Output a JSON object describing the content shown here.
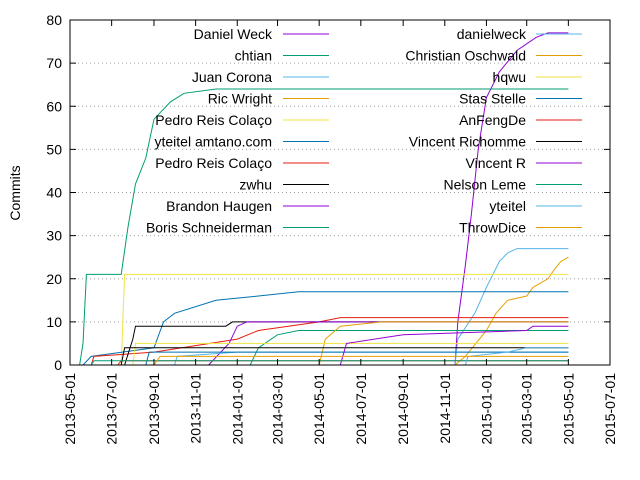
{
  "chart_data": {
    "type": "line",
    "title": "",
    "xlabel": "",
    "ylabel": "Commits",
    "ylim": [
      0,
      80
    ],
    "xlim": [
      "2013-05-01",
      "2015-07-01"
    ],
    "y_ticks": [
      0,
      10,
      20,
      30,
      40,
      50,
      60,
      70,
      80
    ],
    "x_ticks": [
      "2013-05-01",
      "2013-07-01",
      "2013-09-01",
      "2013-11-01",
      "2014-01-01",
      "2014-03-01",
      "2014-05-01",
      "2014-07-01",
      "2014-09-01",
      "2014-11-01",
      "2015-01-01",
      "2015-03-01",
      "2015-05-01",
      "2015-07-01"
    ],
    "grid": "horizontal dotted",
    "legend_position": "top, two columns",
    "series": [
      {
        "name": "Daniel Weck",
        "color": "#9400d3",
        "points": [
          [
            "2014-11-16",
            0
          ],
          [
            "2014-11-20",
            10
          ],
          [
            "2014-12-01",
            23
          ],
          [
            "2014-12-10",
            35
          ],
          [
            "2014-12-20",
            50
          ],
          [
            "2015-01-01",
            62
          ],
          [
            "2015-01-20",
            68
          ],
          [
            "2015-02-15",
            73
          ],
          [
            "2015-03-15",
            76
          ],
          [
            "2015-04-01",
            77
          ],
          [
            "2015-05-01",
            77
          ]
        ]
      },
      {
        "name": "chtian",
        "color": "#009e73",
        "points": [
          [
            "2013-05-15",
            0
          ],
          [
            "2013-05-20",
            5
          ],
          [
            "2013-05-25",
            21
          ],
          [
            "2013-07-15",
            21
          ],
          [
            "2013-07-25",
            32
          ],
          [
            "2013-08-05",
            42
          ],
          [
            "2013-08-20",
            48
          ],
          [
            "2013-09-01",
            57
          ],
          [
            "2013-09-25",
            61
          ],
          [
            "2013-10-15",
            63
          ],
          [
            "2013-12-01",
            64
          ],
          [
            "2015-05-01",
            64
          ]
        ]
      },
      {
        "name": "Juan Corona",
        "color": "#56b4e9",
        "points": [
          [
            "2014-11-16",
            0
          ],
          [
            "2014-11-20",
            6
          ],
          [
            "2014-12-15",
            12
          ],
          [
            "2015-01-01",
            18
          ],
          [
            "2015-01-20",
            24
          ],
          [
            "2015-02-01",
            26
          ],
          [
            "2015-02-15",
            27
          ],
          [
            "2015-05-01",
            27
          ]
        ]
      },
      {
        "name": "Ric Wright",
        "color": "#e69f00",
        "points": [
          [
            "2014-11-16",
            0
          ],
          [
            "2014-12-01",
            2
          ],
          [
            "2015-01-01",
            8
          ],
          [
            "2015-01-15",
            12
          ],
          [
            "2015-02-01",
            15
          ],
          [
            "2015-03-01",
            16
          ],
          [
            "2015-03-10",
            18
          ],
          [
            "2015-04-01",
            20
          ],
          [
            "2015-04-10",
            22
          ],
          [
            "2015-04-20",
            24
          ],
          [
            "2015-05-01",
            25
          ]
        ]
      },
      {
        "name": "Pedro Reis Colaço",
        "color": "#f0e442",
        "points": [
          [
            "2013-07-15",
            0
          ],
          [
            "2013-07-20",
            21
          ],
          [
            "2015-05-01",
            21
          ]
        ]
      },
      {
        "name": "yteitel amtano.com",
        "color": "#0072b2",
        "points": [
          [
            "2013-05-20",
            0
          ],
          [
            "2013-06-01",
            2
          ],
          [
            "2013-09-01",
            4
          ],
          [
            "2013-09-15",
            10
          ],
          [
            "2013-10-01",
            12
          ],
          [
            "2013-12-01",
            15
          ],
          [
            "2014-02-01",
            16
          ],
          [
            "2014-04-01",
            17
          ],
          [
            "2015-05-01",
            17
          ]
        ]
      },
      {
        "name": "Pedro Reis Colaço",
        "color": "#e51e10",
        "points": [
          [
            "2013-06-01",
            0
          ],
          [
            "2013-06-05",
            2
          ],
          [
            "2013-09-01",
            3
          ],
          [
            "2014-01-01",
            6
          ],
          [
            "2014-02-01",
            8
          ],
          [
            "2014-05-01",
            10
          ],
          [
            "2014-06-01",
            11
          ],
          [
            "2015-05-01",
            11
          ]
        ]
      },
      {
        "name": "zwhu",
        "color": "#000000",
        "points": [
          [
            "2013-07-20",
            0
          ],
          [
            "2013-08-01",
            6
          ],
          [
            "2013-08-05",
            9
          ],
          [
            "2013-12-15",
            9
          ],
          [
            "2013-12-25",
            10
          ],
          [
            "2015-05-01",
            10
          ]
        ]
      },
      {
        "name": "Brandon Haugen",
        "color": "#9400d3",
        "points": [
          [
            "2013-11-20",
            0
          ],
          [
            "2013-12-20",
            5
          ],
          [
            "2014-01-01",
            9
          ],
          [
            "2014-01-15",
            10
          ],
          [
            "2015-05-01",
            10
          ]
        ]
      },
      {
        "name": "Boris Schneiderman",
        "color": "#009e73",
        "points": [
          [
            "2014-01-20",
            0
          ],
          [
            "2014-02-01",
            4
          ],
          [
            "2014-03-01",
            7
          ],
          [
            "2014-04-01",
            8
          ],
          [
            "2015-05-01",
            8
          ]
        ]
      },
      {
        "name": "danielweck",
        "color": "#56b4e9",
        "points": [
          [
            "2013-10-01",
            0
          ],
          [
            "2013-10-05",
            2
          ],
          [
            "2014-01-01",
            3
          ],
          [
            "2015-05-01",
            3
          ]
        ]
      },
      {
        "name": "Christian Oschwald",
        "color": "#e69f00",
        "points": [
          [
            "2014-05-01",
            0
          ],
          [
            "2014-05-10",
            6
          ],
          [
            "2014-06-01",
            9
          ],
          [
            "2014-08-01",
            10
          ],
          [
            "2015-05-01",
            10
          ]
        ]
      },
      {
        "name": "hqwu",
        "color": "#f0e442",
        "points": [
          [
            "2013-08-01",
            0
          ],
          [
            "2013-08-05",
            5
          ],
          [
            "2015-05-01",
            5
          ]
        ]
      },
      {
        "name": "Stas Stelle",
        "color": "#0072b2",
        "points": [
          [
            "2013-08-20",
            0
          ],
          [
            "2013-08-25",
            3
          ],
          [
            "2015-05-01",
            3
          ]
        ]
      },
      {
        "name": "AnFengDe",
        "color": "#e51e10",
        "points": [
          [
            "2013-07-10",
            0
          ],
          [
            "2013-07-15",
            1
          ],
          [
            "2015-05-01",
            1
          ]
        ]
      },
      {
        "name": "Vincent Richomme",
        "color": "#000000",
        "points": [
          [
            "2013-07-15",
            0
          ],
          [
            "2013-07-20",
            4
          ],
          [
            "2015-05-01",
            4
          ]
        ]
      },
      {
        "name": "Vincent R",
        "color": "#9400d3",
        "points": [
          [
            "2014-06-01",
            0
          ],
          [
            "2014-06-10",
            5
          ],
          [
            "2014-09-01",
            7
          ],
          [
            "2015-03-01",
            8
          ],
          [
            "2015-03-10",
            9
          ],
          [
            "2015-05-01",
            9
          ]
        ]
      },
      {
        "name": "Nelson Leme",
        "color": "#009e73",
        "points": [
          [
            "2013-06-01",
            0
          ],
          [
            "2013-06-05",
            1
          ],
          [
            "2015-05-01",
            1
          ]
        ]
      },
      {
        "name": "yteitel",
        "color": "#56b4e9",
        "points": [
          [
            "2014-12-01",
            0
          ],
          [
            "2014-12-05",
            2
          ],
          [
            "2015-02-01",
            3
          ],
          [
            "2015-03-01",
            4
          ],
          [
            "2015-05-01",
            4
          ]
        ]
      },
      {
        "name": "ThrowDice",
        "color": "#e69f00",
        "points": [
          [
            "2013-09-01",
            0
          ],
          [
            "2013-09-10",
            2
          ],
          [
            "2015-05-01",
            2
          ]
        ]
      }
    ]
  }
}
